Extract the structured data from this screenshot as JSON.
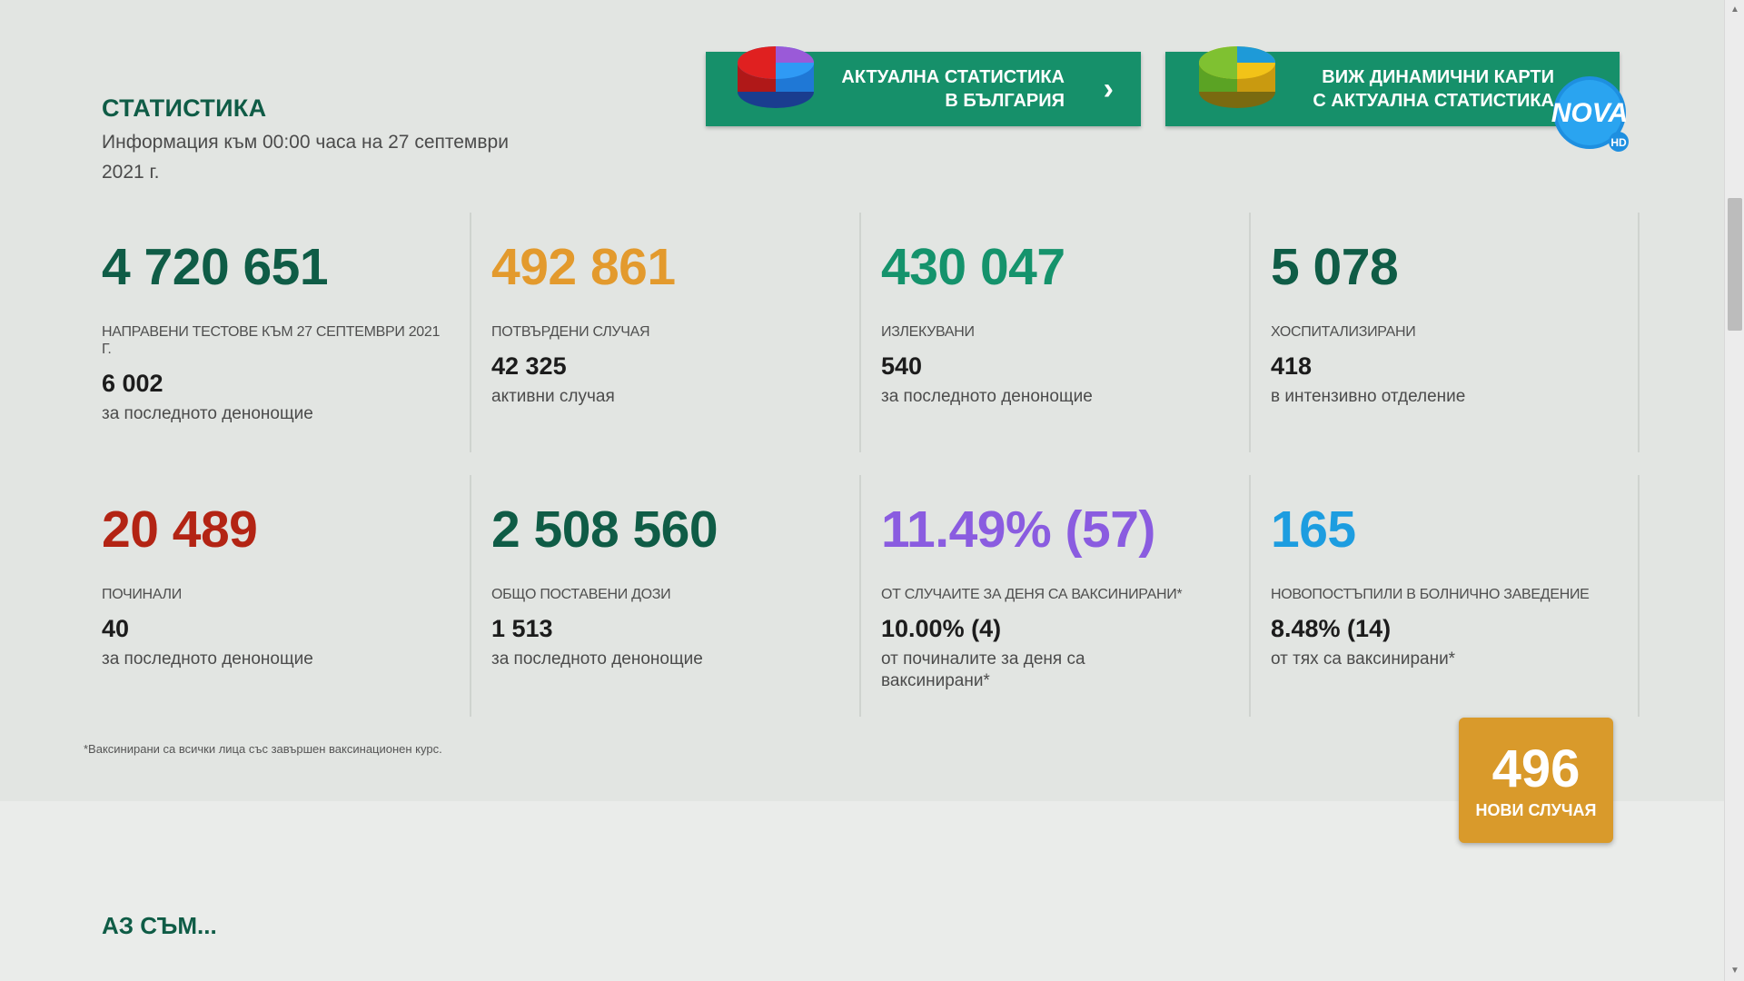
{
  "header": {
    "title": "СТАТИСТИКА",
    "subtitle": "Информация към 00:00 часа на 27 септември 2021 г."
  },
  "buttons": {
    "stats_label": "АКТУАЛНА СТАТИСТИКА\nВ БЪЛГАРИЯ",
    "maps_label": "ВИЖ ДИНАМИЧНИ КАРТИ\nС АКТУАЛНА СТАТИСТИКА",
    "arrow": "›"
  },
  "logo": {
    "text": "NOVA",
    "badge": "HD"
  },
  "stats": [
    {
      "value": "4 720 651",
      "color": "#0f5c46",
      "caption": "НАПРАВЕНИ ТЕСТОВЕ КЪМ 27 СЕПТЕМВРИ 2021 Г.",
      "sub_value": "6 002",
      "sub_text": "за последното денонощие"
    },
    {
      "value": "492 861",
      "color": "#e39a2d",
      "caption": "ПОТВЪРДЕНИ СЛУЧАЯ",
      "sub_value": "42 325",
      "sub_text": "активни случая"
    },
    {
      "value": "430 047",
      "color": "#15936c",
      "caption": "ИЗЛЕКУВАНИ",
      "sub_value": "540",
      "sub_text": "за последното денонощие"
    },
    {
      "value": "5 078",
      "color": "#0f5c46",
      "caption": "ХОСПИТАЛИЗИРАНИ",
      "sub_value": "418",
      "sub_text": "в интензивно отделение"
    },
    {
      "value": "20 489",
      "color": "#b32414",
      "caption": "ПОЧИНАЛИ",
      "sub_value": "40",
      "sub_text": "за последното денонощие"
    },
    {
      "value": "2 508 560",
      "color": "#0f5c46",
      "caption": "ОБЩО ПОСТАВЕНИ ДОЗИ",
      "sub_value": "1 513",
      "sub_text": "за последното денонощие"
    },
    {
      "value": "11.49% (57)",
      "color": "#8a5ce0",
      "caption": "ОТ СЛУЧАИТЕ ЗА ДЕНЯ СА ВАКСИНИРАНИ*",
      "sub_value": "10.00% (4)",
      "sub_text": "от починалите за деня са ваксинирани*"
    },
    {
      "value": "165",
      "color": "#1d9de0",
      "caption": "НОВОПОСТЪПИЛИ В БОЛНИЧНО ЗАВЕДЕНИЕ",
      "sub_value": "8.48% (14)",
      "sub_text": "от тях са ваксинирани*"
    }
  ],
  "footnote": "*Ваксинирани са всички лица със завършен ваксинационен курс.",
  "badge": {
    "value": "496",
    "label": "НОВИ СЛУЧАЯ"
  },
  "next_section": "АЗ СЪМ...",
  "colors": {
    "brand_green": "#16906a",
    "dark_green": "#0f5c46",
    "badge_orange": "#d99a2b"
  }
}
